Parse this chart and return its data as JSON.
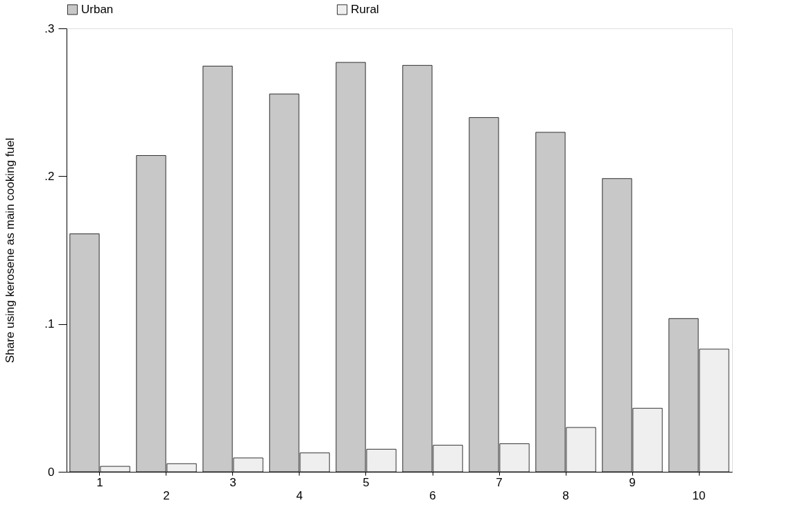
{
  "chart_data": {
    "type": "bar",
    "ylabel": "Share using kerosene as main cooking fuel",
    "categories": [
      "1",
      "2",
      "3",
      "4",
      "5",
      "6",
      "7",
      "8",
      "9",
      "10"
    ],
    "series": [
      {
        "name": "Urban",
        "color": "#c8c8c8",
        "values": [
          0.161,
          0.214,
          0.2745,
          0.2556,
          0.277,
          0.275,
          0.2397,
          0.2297,
          0.1984,
          0.1037
        ]
      },
      {
        "name": "Rural",
        "color": "#efefef",
        "values": [
          0.0037,
          0.0055,
          0.0094,
          0.0128,
          0.0153,
          0.018,
          0.019,
          0.03,
          0.043,
          0.083
        ]
      }
    ],
    "ylim": [
      0,
      0.3
    ],
    "yticks": [
      {
        "value": 0,
        "label": "0"
      },
      {
        "value": 0.1,
        "label": ".1"
      },
      {
        "value": 0.2,
        "label": ".2"
      },
      {
        "value": 0.3,
        "label": ".3"
      }
    ],
    "grid": false,
    "legend": "top"
  }
}
